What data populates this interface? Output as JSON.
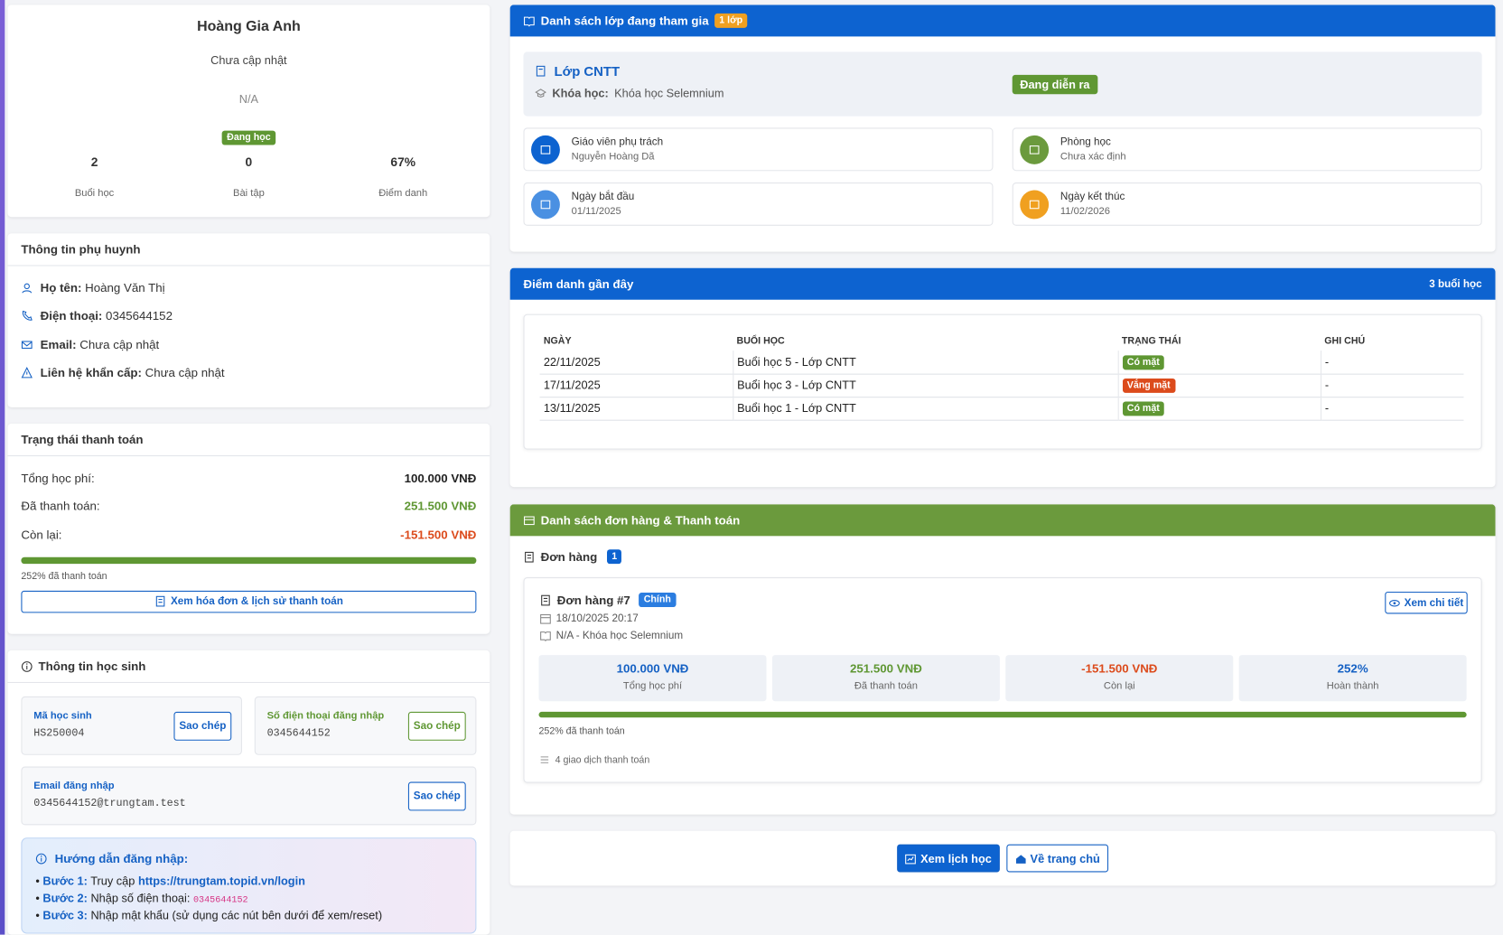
{
  "profile": {
    "name": "Hoàng Gia Anh",
    "note": "Chưa cập nhật",
    "code": "N/A",
    "status": "Đang học",
    "stats": [
      {
        "value": "2",
        "label": "Buổi học"
      },
      {
        "value": "0",
        "label": "Bài tập"
      },
      {
        "value": "67%",
        "label": "Điểm danh"
      }
    ]
  },
  "parent": {
    "title": "Thông tin phụ huynh",
    "items": [
      {
        "label": "Họ tên:",
        "value": "Hoàng Văn Thị"
      },
      {
        "label": "Điện thoại:",
        "value": "0345644152"
      },
      {
        "label": "Email:",
        "value": "Chưa cập nhật"
      },
      {
        "label": "Liên hệ khẩn cấp:",
        "value": "Chưa cập nhật"
      }
    ]
  },
  "payment": {
    "title": "Trạng thái thanh toán",
    "rows": [
      {
        "label": "Tổng học phí:",
        "value": "100.000 VNĐ"
      },
      {
        "label": "Đã thanh toán:",
        "value": "251.500 VNĐ"
      },
      {
        "label": "Còn lại:",
        "value": "-151.500 VNĐ"
      }
    ],
    "progress_label": "252% đã thanh toán",
    "button": "Xem hóa đơn & lịch sử thanh toán"
  },
  "student": {
    "title": "Thông tin học sinh",
    "fields": [
      {
        "label": "Mã học sinh",
        "value": "HS250004",
        "button": "Sao chép"
      },
      {
        "label": "Số điện thoại đăng nhập",
        "value": "0345644152",
        "button": "Sao chép"
      },
      {
        "label": "Email đăng nhập",
        "value": "0345644152@trungtam.test",
        "button": "Sao chép"
      }
    ],
    "guide": {
      "title": "Hướng dẫn đăng nhập:",
      "steps": [
        {
          "label": "Bước 1:",
          "text": "Truy cập",
          "extra": "https://trungtam.topid.vn/login"
        },
        {
          "label": "Bước 2:",
          "text": "Nhập số điện thoại:",
          "extra": "0345644152"
        },
        {
          "label": "Bước 3:",
          "text": "Nhập mật khẩu (sử dụng các nút bên dưới để xem/reset)",
          "extra": null
        }
      ]
    }
  },
  "classes": {
    "title": "Danh sách lớp đang tham gia",
    "badge": "1 lớp",
    "class_name": "Lớp CNTT",
    "course_label": "Khóa học:",
    "course": "Khóa học Selemnium",
    "status": "Đang diễn ra",
    "info": [
      {
        "label": "Giáo viên phụ trách",
        "value": "Nguyễn Hoàng Dã"
      },
      {
        "label": "Phòng học",
        "value": "Chưa xác định"
      },
      {
        "label": "Ngày bắt đầu",
        "value": "01/11/2025"
      },
      {
        "label": "Ngày kết thúc",
        "value": "11/02/2026"
      }
    ]
  },
  "attendance": {
    "title": "Điểm danh gần đây",
    "count": "3 buổi học",
    "columns": [
      "NGÀY",
      "BUỔI HỌC",
      "TRẠNG THÁI",
      "GHI CHÚ"
    ],
    "rows": [
      [
        "22/11/2025",
        "Buổi học 5 - Lớp CNTT",
        "Có mặt",
        "-"
      ],
      [
        "17/11/2025",
        "Buổi học 3 - Lớp CNTT",
        "Vắng mặt",
        "-"
      ],
      [
        "13/11/2025",
        "Buổi học 1 - Lớp CNTT",
        "Có mặt",
        "-"
      ]
    ]
  },
  "orders": {
    "title": "Danh sách đơn hàng & Thanh toán",
    "subtitle": "Đơn hàng",
    "count": "1",
    "order": {
      "title": "Đơn hàng #7",
      "badge": "Chính",
      "date": "18/10/2025 20:17",
      "course": "N/A - Khóa học Selemnium",
      "detail_button": "Xem chi tiết",
      "stats": [
        {
          "value": "100.000 VNĐ",
          "label": "Tổng học phí"
        },
        {
          "value": "251.500 VNĐ",
          "label": "Đã thanh toán"
        },
        {
          "value": "-151.500 VNĐ",
          "label": "Còn lại"
        },
        {
          "value": "252%",
          "label": "Hoàn thành"
        }
      ],
      "progress_label": "252% đã thanh toán",
      "transactions": "4 giao dịch thanh toán"
    }
  },
  "footer": {
    "schedule_button": "Xem lịch học",
    "home_button": "Về trang chủ"
  }
}
